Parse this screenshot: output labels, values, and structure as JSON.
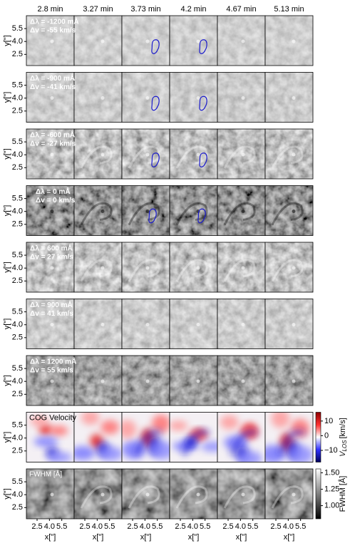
{
  "columns": [
    "2.8 min",
    "3.27 min",
    "3.73 min",
    "4.2 min",
    "4.67 min",
    "5.13 min"
  ],
  "rows": [
    {
      "line1": "Δλ = -1200 mÅ",
      "line2": "Δv = -55 km/s"
    },
    {
      "line1": "Δλ = -900 mÅ",
      "line2": "Δv = -41 km/s"
    },
    {
      "line1": "Δλ = -600 mÅ",
      "line2": "Δv = -27 km/s"
    },
    {
      "line1": "Δλ = 0 mÅ",
      "line2": "Δv = 0 km/s"
    },
    {
      "line1": "Δλ = 600 mÅ",
      "line2": "Δv = 27 km/s"
    },
    {
      "line1": "Δλ = 900 mÅ",
      "line2": "Δv = 41 km/s"
    },
    {
      "line1": "Δλ = 1200 mÅ",
      "line2": "Δv = 55 km/s"
    }
  ],
  "velocity_row": {
    "label": "COG Velocity"
  },
  "fwhm_row": {
    "label": "FWHM [Å]"
  },
  "y_axis": {
    "label": "y[\"]",
    "lim": [
      1.2,
      7.0
    ],
    "ticks": [
      2.5,
      {
        "value": 4,
        "label": "4.0"
      },
      5.5
    ]
  },
  "x_axis": {
    "label": "x[\"]",
    "lim": [
      1.2,
      7.0
    ],
    "ticks": [
      2.5,
      {
        "value": 4,
        "label": "4.0"
      },
      5.5
    ]
  },
  "velocity_colorbar": {
    "symbol": "V",
    "subscript": "LOS",
    "unit": "[km/s]",
    "lim": [
      -18,
      16
    ],
    "ticks": [
      10,
      0,
      {
        "value": -10,
        "label": "−10"
      }
    ]
  },
  "fwhm_colorbar": {
    "label": "FWHM [Å]",
    "lim": [
      0.8,
      1.56
    ],
    "ticks": [
      {
        "value": 1.5,
        "label": "1.50"
      },
      1.25,
      {
        "value": 1,
        "label": "1.00"
      }
    ]
  }
}
